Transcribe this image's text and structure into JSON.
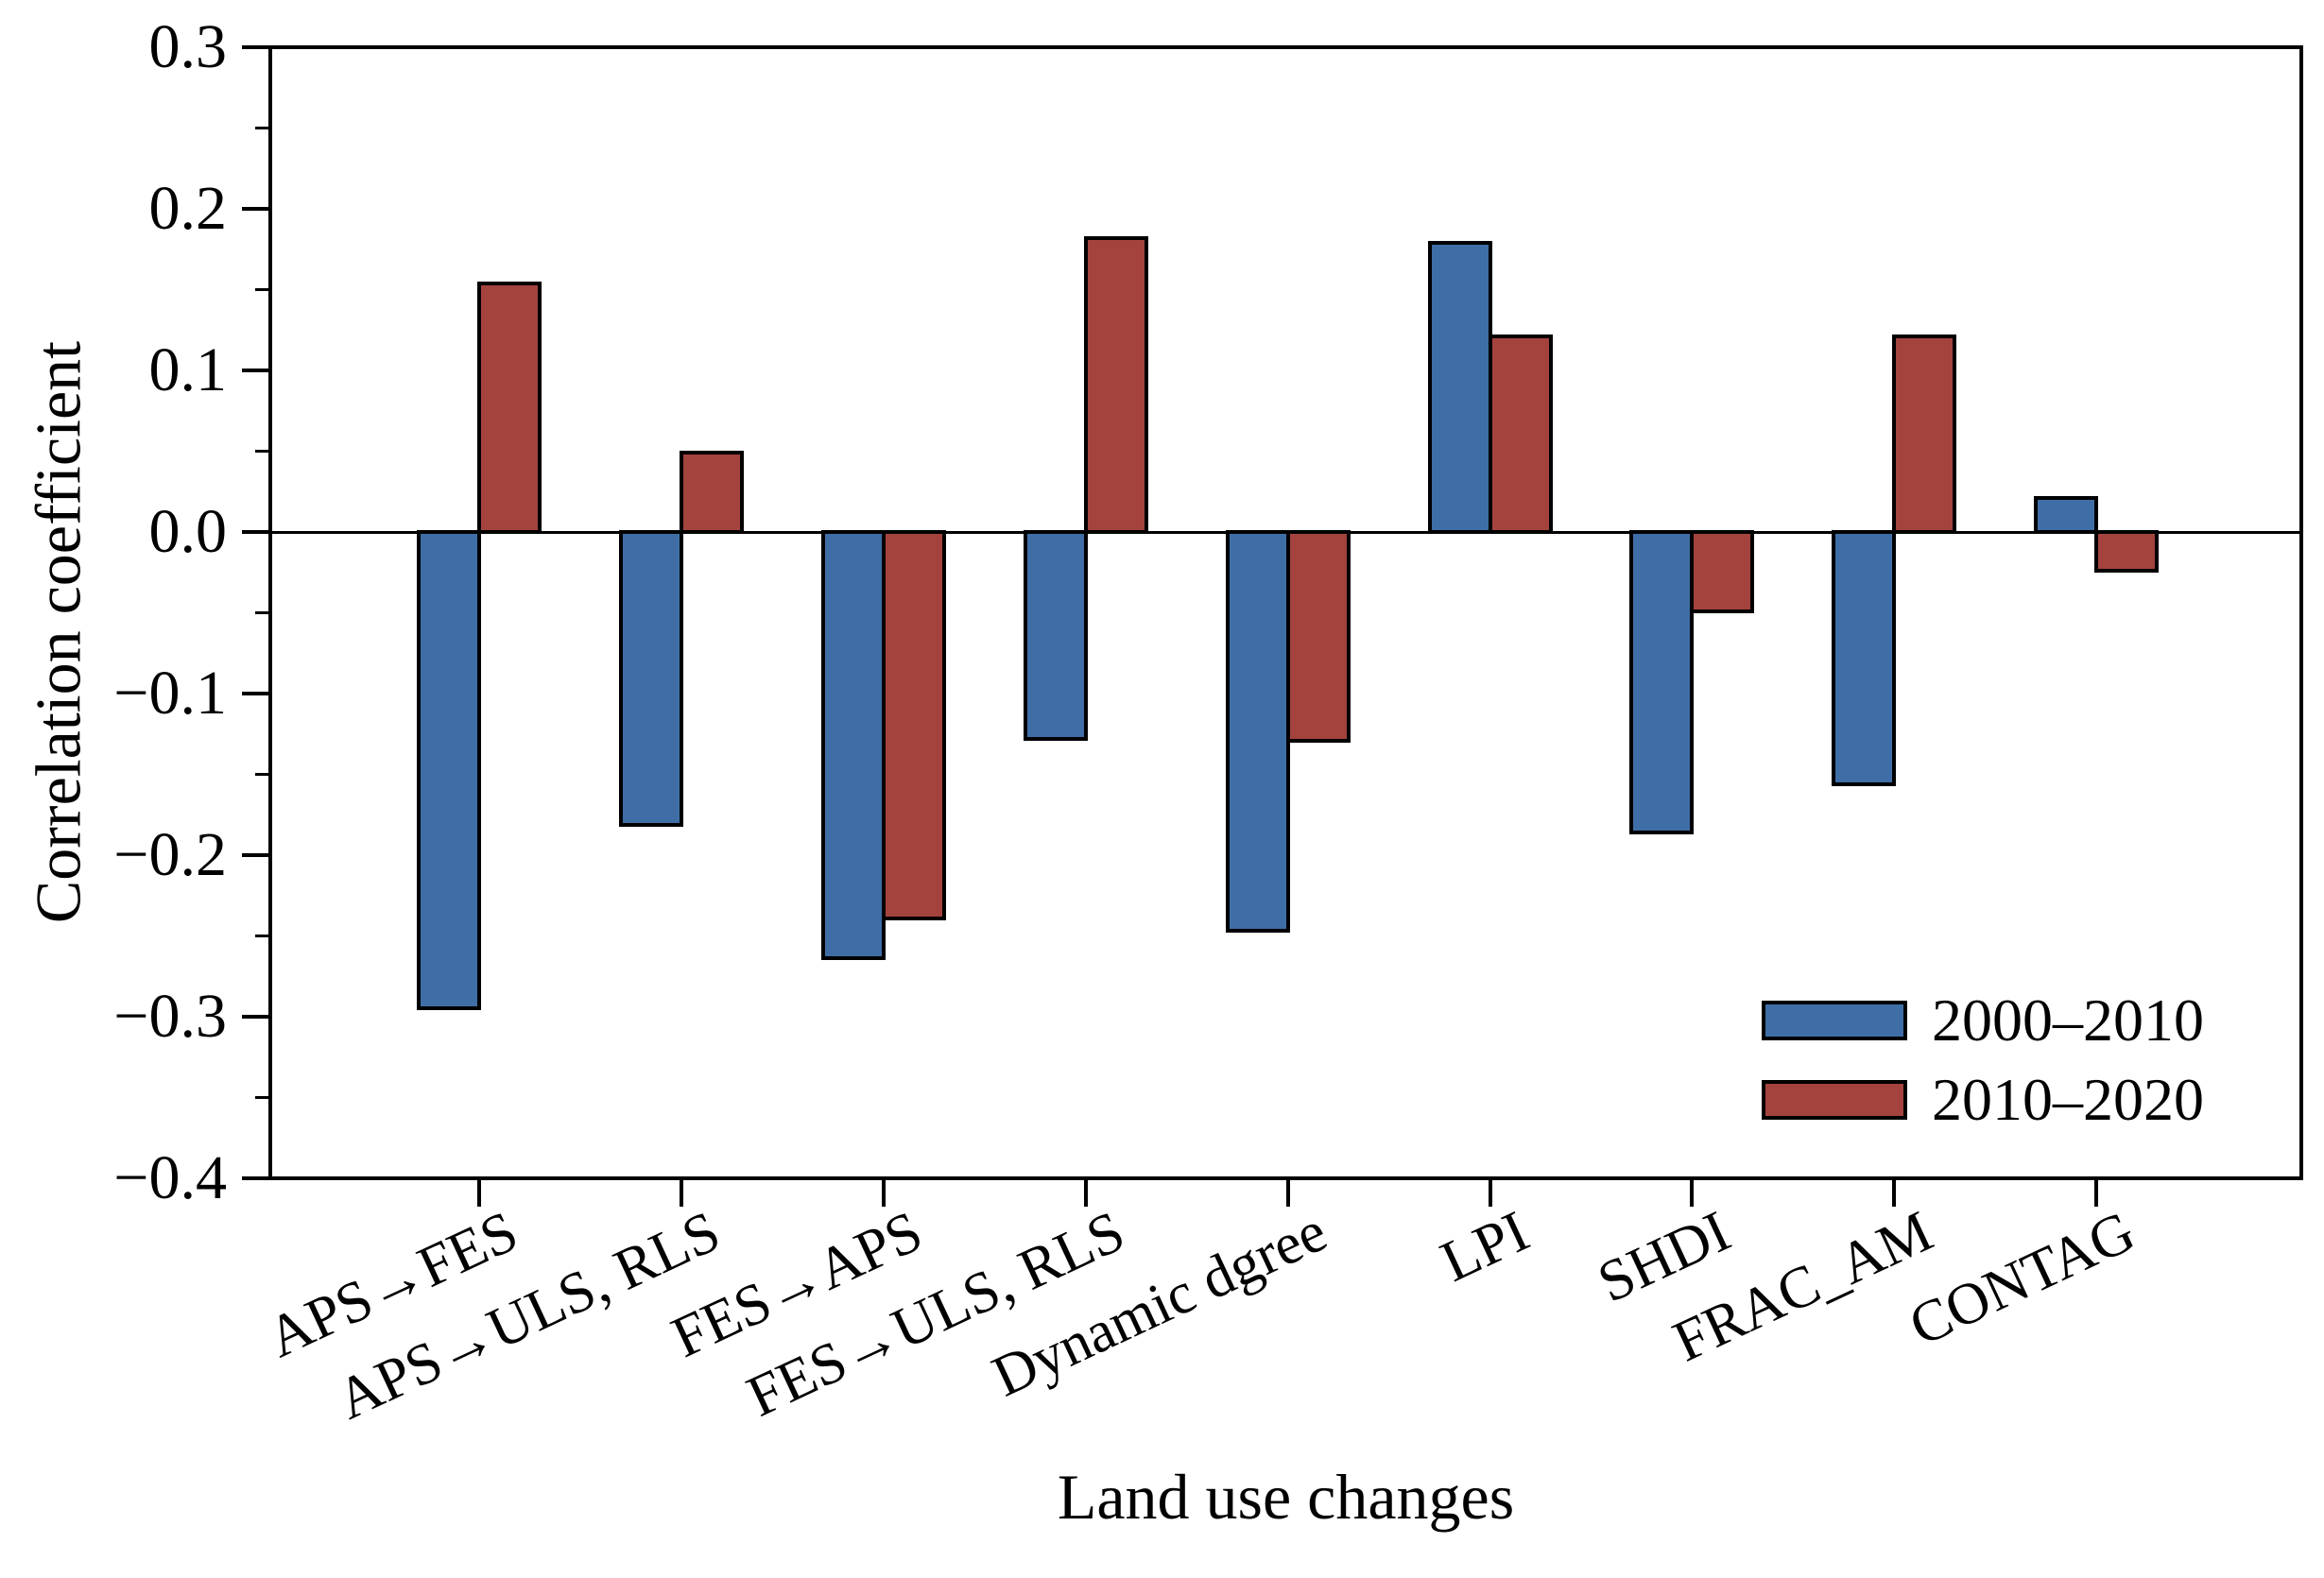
{
  "figure": {
    "background": "#ffffff",
    "axis_color": "#000000"
  },
  "chart_data": {
    "type": "bar",
    "title": "",
    "xlabel": "Land use changes",
    "ylabel": "Correlation coefficient",
    "categories": [
      "APS→FES",
      "APS→ULS, RLS",
      "FES→APS",
      "FES→ULS, RLS",
      "Dynamic dgree",
      "LPI",
      "SHDI",
      "FRAC_AM",
      "CONTAG"
    ],
    "series": [
      {
        "name": "2000–2010",
        "color": "#3F6EA6",
        "values": [
          -0.295,
          -0.181,
          -0.264,
          -0.128,
          -0.247,
          0.179,
          -0.186,
          -0.156,
          0.021
        ]
      },
      {
        "name": "2010–2020",
        "color": "#A4433E",
        "values": [
          0.154,
          0.049,
          -0.239,
          0.182,
          -0.129,
          0.121,
          -0.049,
          0.121,
          -0.024
        ]
      }
    ],
    "ylim": [
      -0.4,
      0.3
    ],
    "ytick_step": 0.1,
    "ytick_labels": [
      "0.3",
      "0.2",
      "0.1",
      "0.0",
      "−0.1",
      "−0.2",
      "−0.3",
      "−0.4"
    ],
    "ytick_minor_step": 0.05,
    "grid": false,
    "zero_line": true,
    "legend_position": "lower right",
    "bar_edge_color": "#000000"
  }
}
